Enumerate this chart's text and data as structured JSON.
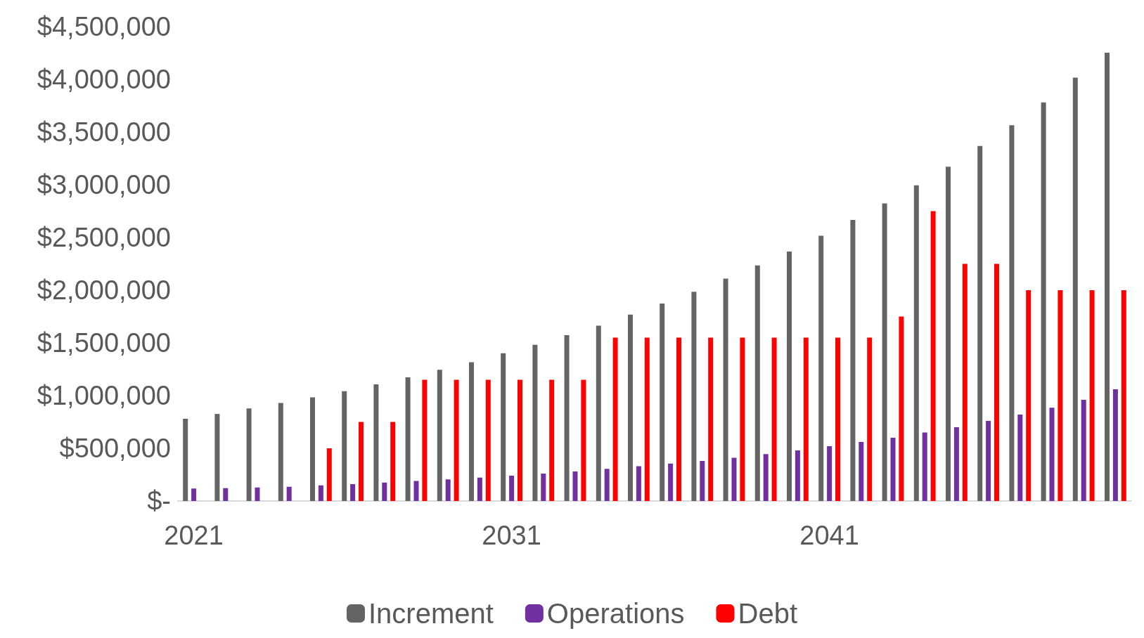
{
  "chart_data": {
    "type": "bar",
    "categories": [
      "2021",
      null,
      null,
      null,
      null,
      null,
      null,
      null,
      null,
      null,
      "2031",
      null,
      null,
      null,
      null,
      null,
      null,
      null,
      null,
      null,
      "2041",
      null,
      null,
      null,
      null,
      null,
      null,
      null,
      null,
      null
    ],
    "series": [
      {
        "name": "Increment",
        "color": "#646464",
        "values": [
          780000,
          826000,
          878000,
          930000,
          983000,
          1042000,
          1107000,
          1173000,
          1245000,
          1317000,
          1402000,
          1481000,
          1573000,
          1664000,
          1769000,
          1874000,
          1985000,
          2110000,
          2235000,
          2366000,
          2516000,
          2667000,
          2824000,
          2995000,
          3172000,
          3368000,
          3565000,
          3781000,
          4017000,
          4253000
        ]
      },
      {
        "name": "Operations",
        "color": "#7030a0",
        "values": [
          118000,
          122000,
          128000,
          135000,
          148000,
          160000,
          175000,
          190000,
          205000,
          222000,
          240000,
          260000,
          280000,
          305000,
          330000,
          355000,
          380000,
          410000,
          445000,
          480000,
          520000,
          560000,
          600000,
          650000,
          700000,
          760000,
          820000,
          885000,
          960000,
          1060000
        ]
      },
      {
        "name": "Debt",
        "color": "#ff0000",
        "values": [
          0,
          0,
          0,
          0,
          500000,
          750000,
          750000,
          1150000,
          1150000,
          1150000,
          1150000,
          1150000,
          1150000,
          1550000,
          1550000,
          1550000,
          1550000,
          1550000,
          1550000,
          1550000,
          1550000,
          1550000,
          1750000,
          2750000,
          2250000,
          2250000,
          2000000,
          2000000,
          2000000,
          2000000
        ]
      }
    ],
    "ylim": [
      0,
      4500000
    ],
    "yticks": [
      {
        "value": 0,
        "label": "$-"
      },
      {
        "value": 500000,
        "label": "$500,000"
      },
      {
        "value": 1000000,
        "label": "$1,000,000"
      },
      {
        "value": 1500000,
        "label": "$1,500,000"
      },
      {
        "value": 2000000,
        "label": "$2,000,000"
      },
      {
        "value": 2500000,
        "label": "$2,500,000"
      },
      {
        "value": 3000000,
        "label": "$3,000,000"
      },
      {
        "value": 3500000,
        "label": "$3,500,000"
      },
      {
        "value": 4000000,
        "label": "$4,000,000"
      },
      {
        "value": 4500000,
        "label": "$4,500,000"
      }
    ],
    "grid": false,
    "legend": "bottom"
  }
}
